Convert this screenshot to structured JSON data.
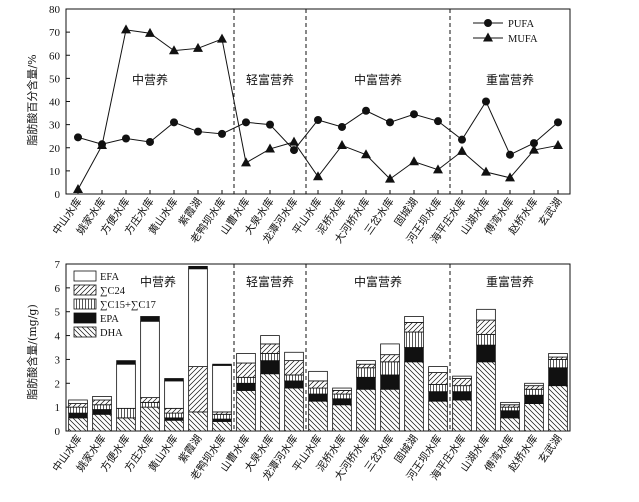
{
  "chart_data": [
    {
      "type": "line",
      "ylabel": "脂肪酸百分含量/%",
      "ylim": [
        0,
        80
      ],
      "yticks": [
        0,
        10,
        20,
        30,
        40,
        50,
        60,
        70,
        80
      ],
      "categories": [
        "中山水库",
        "姚家水库",
        "方便水库",
        "方庄水库",
        "黄山水库",
        "紫霞湖",
        "老鸭坝水库",
        "山曹水库",
        "大泉水库",
        "龙潭河水库",
        "平山水库",
        "泥桥水库",
        "大河桥水库",
        "三岔水库",
        "固城湖",
        "河王坝水库",
        "海平庄水库",
        "山湖水库",
        "傅湾水库",
        "赵桥水库",
        "玄武湖"
      ],
      "regions": [
        {
          "label": "中营养",
          "start": 0,
          "end": 6
        },
        {
          "label": "轻富营养",
          "start": 7,
          "end": 9
        },
        {
          "label": "中富营养",
          "start": 10,
          "end": 15
        },
        {
          "label": "重富营养",
          "start": 16,
          "end": 20
        }
      ],
      "series": [
        {
          "name": "PUFA",
          "marker": "circle",
          "values": [
            24.5,
            21.5,
            24,
            22.5,
            31,
            27,
            26,
            31,
            30,
            19,
            32,
            29,
            36,
            31,
            34.5,
            31.5,
            23.5,
            40,
            17,
            22,
            31
          ]
        },
        {
          "name": "MUFA",
          "marker": "triangle",
          "values": [
            2,
            21,
            71,
            69.5,
            62,
            63,
            67,
            13.5,
            19.5,
            22.5,
            7.5,
            21,
            17,
            6.5,
            14,
            10.5,
            18.5,
            9.5,
            7,
            19,
            21
          ]
        }
      ],
      "legend_position": "top-right"
    },
    {
      "type": "bar",
      "stacked": true,
      "ylabel": "脂肪酸含量/(mg/g)",
      "ylim": [
        0,
        7
      ],
      "yticks": [
        0,
        1,
        2,
        3,
        4,
        5,
        6,
        7
      ],
      "categories": [
        "中山水库",
        "姚家水库",
        "方便水库",
        "方庄水库",
        "黄山水库",
        "紫霞湖",
        "老鸭坝水库",
        "山曹水库",
        "大泉水库",
        "龙潭河水库",
        "平山水库",
        "泥桥水库",
        "大河桥水库",
        "三岔水库",
        "固城湖",
        "河王坝水库",
        "海平庄水库",
        "山湖水库",
        "傅湾水库",
        "赵桥水库",
        "玄武湖"
      ],
      "regions": [
        {
          "label": "中营养",
          "start": 0,
          "end": 6
        },
        {
          "label": "轻富营养",
          "start": 7,
          "end": 9
        },
        {
          "label": "中富营养",
          "start": 10,
          "end": 15
        },
        {
          "label": "重富营养",
          "start": 16,
          "end": 20
        }
      ],
      "series": [
        {
          "name": "DHA",
          "pattern": "backslash",
          "values": [
            0.55,
            0.7,
            0.55,
            1.0,
            0.45,
            0.8,
            0.4,
            1.7,
            2.4,
            1.8,
            1.25,
            1.1,
            1.75,
            1.75,
            2.9,
            1.25,
            1.3,
            2.9,
            0.55,
            1.15,
            1.9
          ]
        },
        {
          "name": "EPA",
          "pattern": "solid",
          "values": [
            0.2,
            0.2,
            0.0,
            0.0,
            0.1,
            0.0,
            0.1,
            0.3,
            0.55,
            0.3,
            0.3,
            0.25,
            0.5,
            0.6,
            0.6,
            0.4,
            0.35,
            0.7,
            0.3,
            0.35,
            0.75
          ]
        },
        {
          "name": "∑C15+∑C17",
          "pattern": "vertical",
          "values": [
            0.25,
            0.2,
            0.4,
            0.2,
            0.2,
            0.0,
            0.2,
            0.25,
            0.3,
            0.25,
            0.25,
            0.2,
            0.4,
            0.55,
            0.65,
            0.3,
            0.25,
            0.45,
            0.15,
            0.25,
            0.35
          ]
        },
        {
          "name": "∑C24",
          "pattern": "slash",
          "values": [
            0.15,
            0.2,
            0.0,
            0.2,
            0.2,
            1.9,
            0.1,
            0.6,
            0.4,
            0.6,
            0.3,
            0.15,
            0.15,
            0.3,
            0.4,
            0.5,
            0.3,
            0.6,
            0.1,
            0.15,
            0.1
          ]
        },
        {
          "name": "EFA",
          "pattern": "white",
          "values": [
            0.15,
            0.15,
            1.85,
            3.2,
            1.15,
            4.1,
            1.95,
            0.4,
            0.35,
            0.35,
            0.4,
            0.1,
            0.15,
            0.45,
            0.25,
            0.25,
            0.1,
            0.45,
            0.1,
            0.1,
            0.15
          ]
        },
        {
          "name": "",
          "pattern": "cap",
          "values": [
            0.0,
            0.0,
            0.15,
            0.2,
            0.1,
            0.1,
            0.05,
            0.0,
            0.0,
            0.0,
            0.0,
            0.0,
            0.0,
            0.0,
            0.0,
            0.0,
            0.0,
            0.0,
            0.0,
            0.0,
            0.0
          ]
        }
      ],
      "legend_position": "top-left"
    }
  ]
}
